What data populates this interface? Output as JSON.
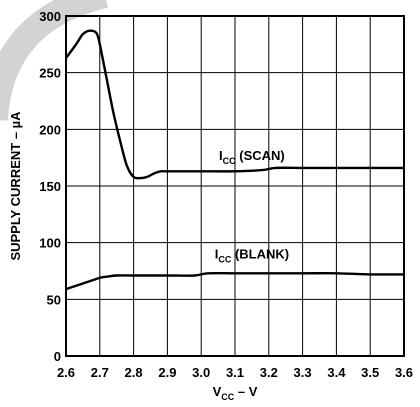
{
  "chart_data": {
    "type": "line",
    "title": "",
    "xlabel": {
      "main": "V",
      "sub": "CC",
      "suffix": " – V"
    },
    "ylabel": "SUPPLY CURRENT – µA",
    "xlim": [
      2.6,
      3.6
    ],
    "ylim": [
      0,
      300
    ],
    "x_ticks": [
      "2.6",
      "2.7",
      "2.8",
      "2.9",
      "3.0",
      "3.1",
      "3.2",
      "3.3",
      "3.4",
      "3.5",
      "3.6"
    ],
    "y_ticks": [
      "0",
      "50",
      "100",
      "150",
      "200",
      "250",
      "300"
    ],
    "grid": true,
    "line_color": "#000000",
    "series": [
      {
        "label": {
          "main": "I",
          "sub": "CC",
          "suffix": " (SCAN)"
        },
        "x": [
          2.6,
          2.63,
          2.65,
          2.67,
          2.69,
          2.7,
          2.72,
          2.74,
          2.76,
          2.78,
          2.8,
          2.82,
          2.84,
          2.86,
          2.88,
          2.9,
          3.0,
          3.1,
          3.18,
          3.22,
          3.3,
          3.4,
          3.5,
          3.6
        ],
        "y": [
          263,
          275,
          284,
          287,
          285,
          275,
          245,
          215,
          190,
          168,
          158,
          157,
          158,
          161,
          163,
          163,
          163,
          163,
          164,
          166,
          166,
          166,
          166,
          166
        ]
      },
      {
        "label": {
          "main": "I",
          "sub": "CC",
          "suffix": " (BLANK)"
        },
        "x": [
          2.6,
          2.64,
          2.68,
          2.7,
          2.72,
          2.75,
          2.8,
          2.9,
          2.98,
          3.02,
          3.1,
          3.2,
          3.3,
          3.4,
          3.5,
          3.6
        ],
        "y": [
          59,
          63,
          67,
          69,
          70,
          71,
          71,
          71,
          71,
          73,
          73,
          73,
          73,
          73,
          72,
          72
        ]
      }
    ]
  },
  "decoration": {
    "arc_color": "#d3d3d3"
  }
}
